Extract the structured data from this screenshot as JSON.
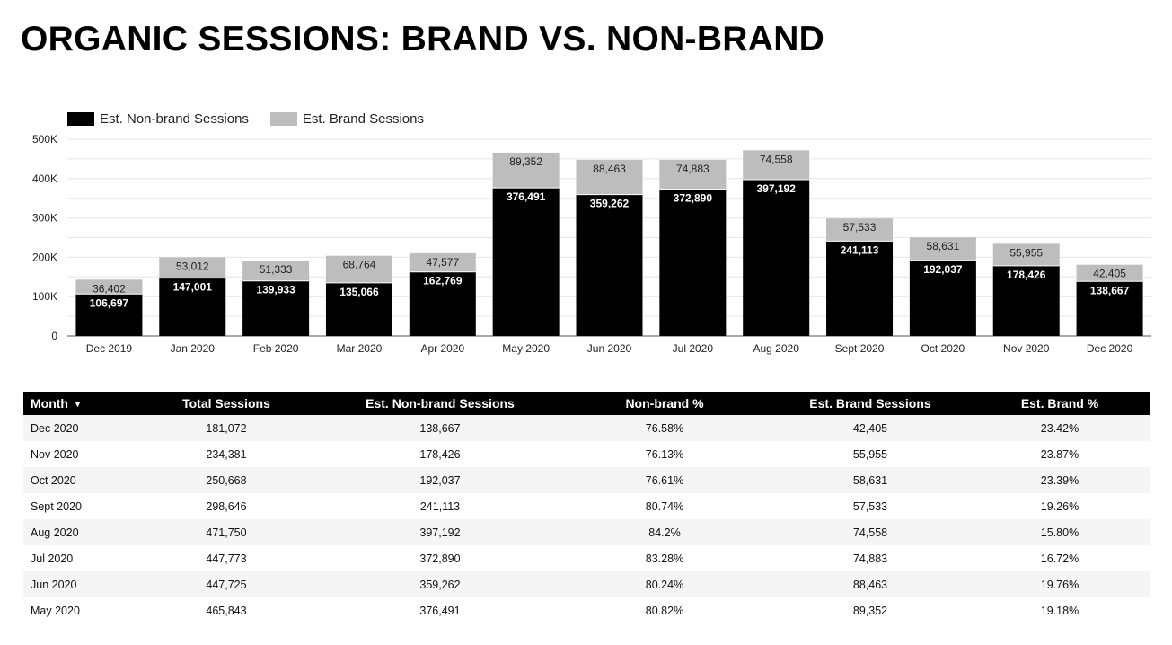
{
  "title": "ORGANIC SESSIONS: BRAND VS. NON-BRAND",
  "colors": {
    "nonbrand": "#000000",
    "brand": "#bdbdbd",
    "grid": "#e6e6e6"
  },
  "legend": [
    {
      "label": "Est. Non-brand Sessions",
      "color": "#000000"
    },
    {
      "label": "Est. Brand Sessions",
      "color": "#bdbdbd"
    }
  ],
  "chart_data": {
    "type": "bar",
    "stacked": true,
    "title": "",
    "xlabel": "",
    "ylabel": "",
    "ylim": [
      0,
      500000
    ],
    "yticks": [
      0,
      100000,
      200000,
      300000,
      400000,
      500000
    ],
    "ytick_labels": [
      "0",
      "100K",
      "200K",
      "300K",
      "400K",
      "500K"
    ],
    "grid": true,
    "legend_position": "top-left",
    "categories": [
      "Dec 2019",
      "Jan 2020",
      "Feb 2020",
      "Mar 2020",
      "Apr 2020",
      "May 2020",
      "Jun 2020",
      "Jul 2020",
      "Aug 2020",
      "Sept 2020",
      "Oct 2020",
      "Nov 2020",
      "Dec 2020"
    ],
    "series": [
      {
        "name": "Est. Non-brand Sessions",
        "values": [
          106697,
          147001,
          139933,
          135066,
          162769,
          376491,
          359262,
          372890,
          397192,
          241113,
          192037,
          178426,
          138667
        ],
        "labels": [
          "106,697",
          "147,001",
          "139,933",
          "135,066",
          "162,769",
          "376,491",
          "359,262",
          "372,890",
          "397,192",
          "241,113",
          "192,037",
          "178,426",
          "138,667"
        ]
      },
      {
        "name": "Est. Brand Sessions",
        "values": [
          36402,
          53012,
          51333,
          68764,
          47577,
          89352,
          88463,
          74883,
          74558,
          57533,
          58631,
          55955,
          42405
        ],
        "labels": [
          "36,402",
          "53,012",
          "51,333",
          "68,764",
          "47,577",
          "89,352",
          "88,463",
          "74,883",
          "74,558",
          "57,533",
          "58,631",
          "55,955",
          "42,405"
        ]
      }
    ]
  },
  "table": {
    "sort_indicator": "▼",
    "headers": [
      "Month",
      "Total Sessions",
      "Est. Non-brand Sessions",
      "Non-brand %",
      "Est. Brand Sessions",
      "Est. Brand %"
    ],
    "rows": [
      [
        "Dec 2020",
        "181,072",
        "138,667",
        "76.58%",
        "42,405",
        "23.42%"
      ],
      [
        "Nov 2020",
        "234,381",
        "178,426",
        "76.13%",
        "55,955",
        "23.87%"
      ],
      [
        "Oct 2020",
        "250,668",
        "192,037",
        "76.61%",
        "58,631",
        "23.39%"
      ],
      [
        "Sept 2020",
        "298,646",
        "241,113",
        "80.74%",
        "57,533",
        "19.26%"
      ],
      [
        "Aug 2020",
        "471,750",
        "397,192",
        "84.2%",
        "74,558",
        "15.80%"
      ],
      [
        "Jul 2020",
        "447,773",
        "372,890",
        "83.28%",
        "74,883",
        "16.72%"
      ],
      [
        "Jun 2020",
        "447,725",
        "359,262",
        "80.24%",
        "88,463",
        "19.76%"
      ],
      [
        "May 2020",
        "465,843",
        "376,491",
        "80.82%",
        "89,352",
        "19.18%"
      ]
    ]
  }
}
